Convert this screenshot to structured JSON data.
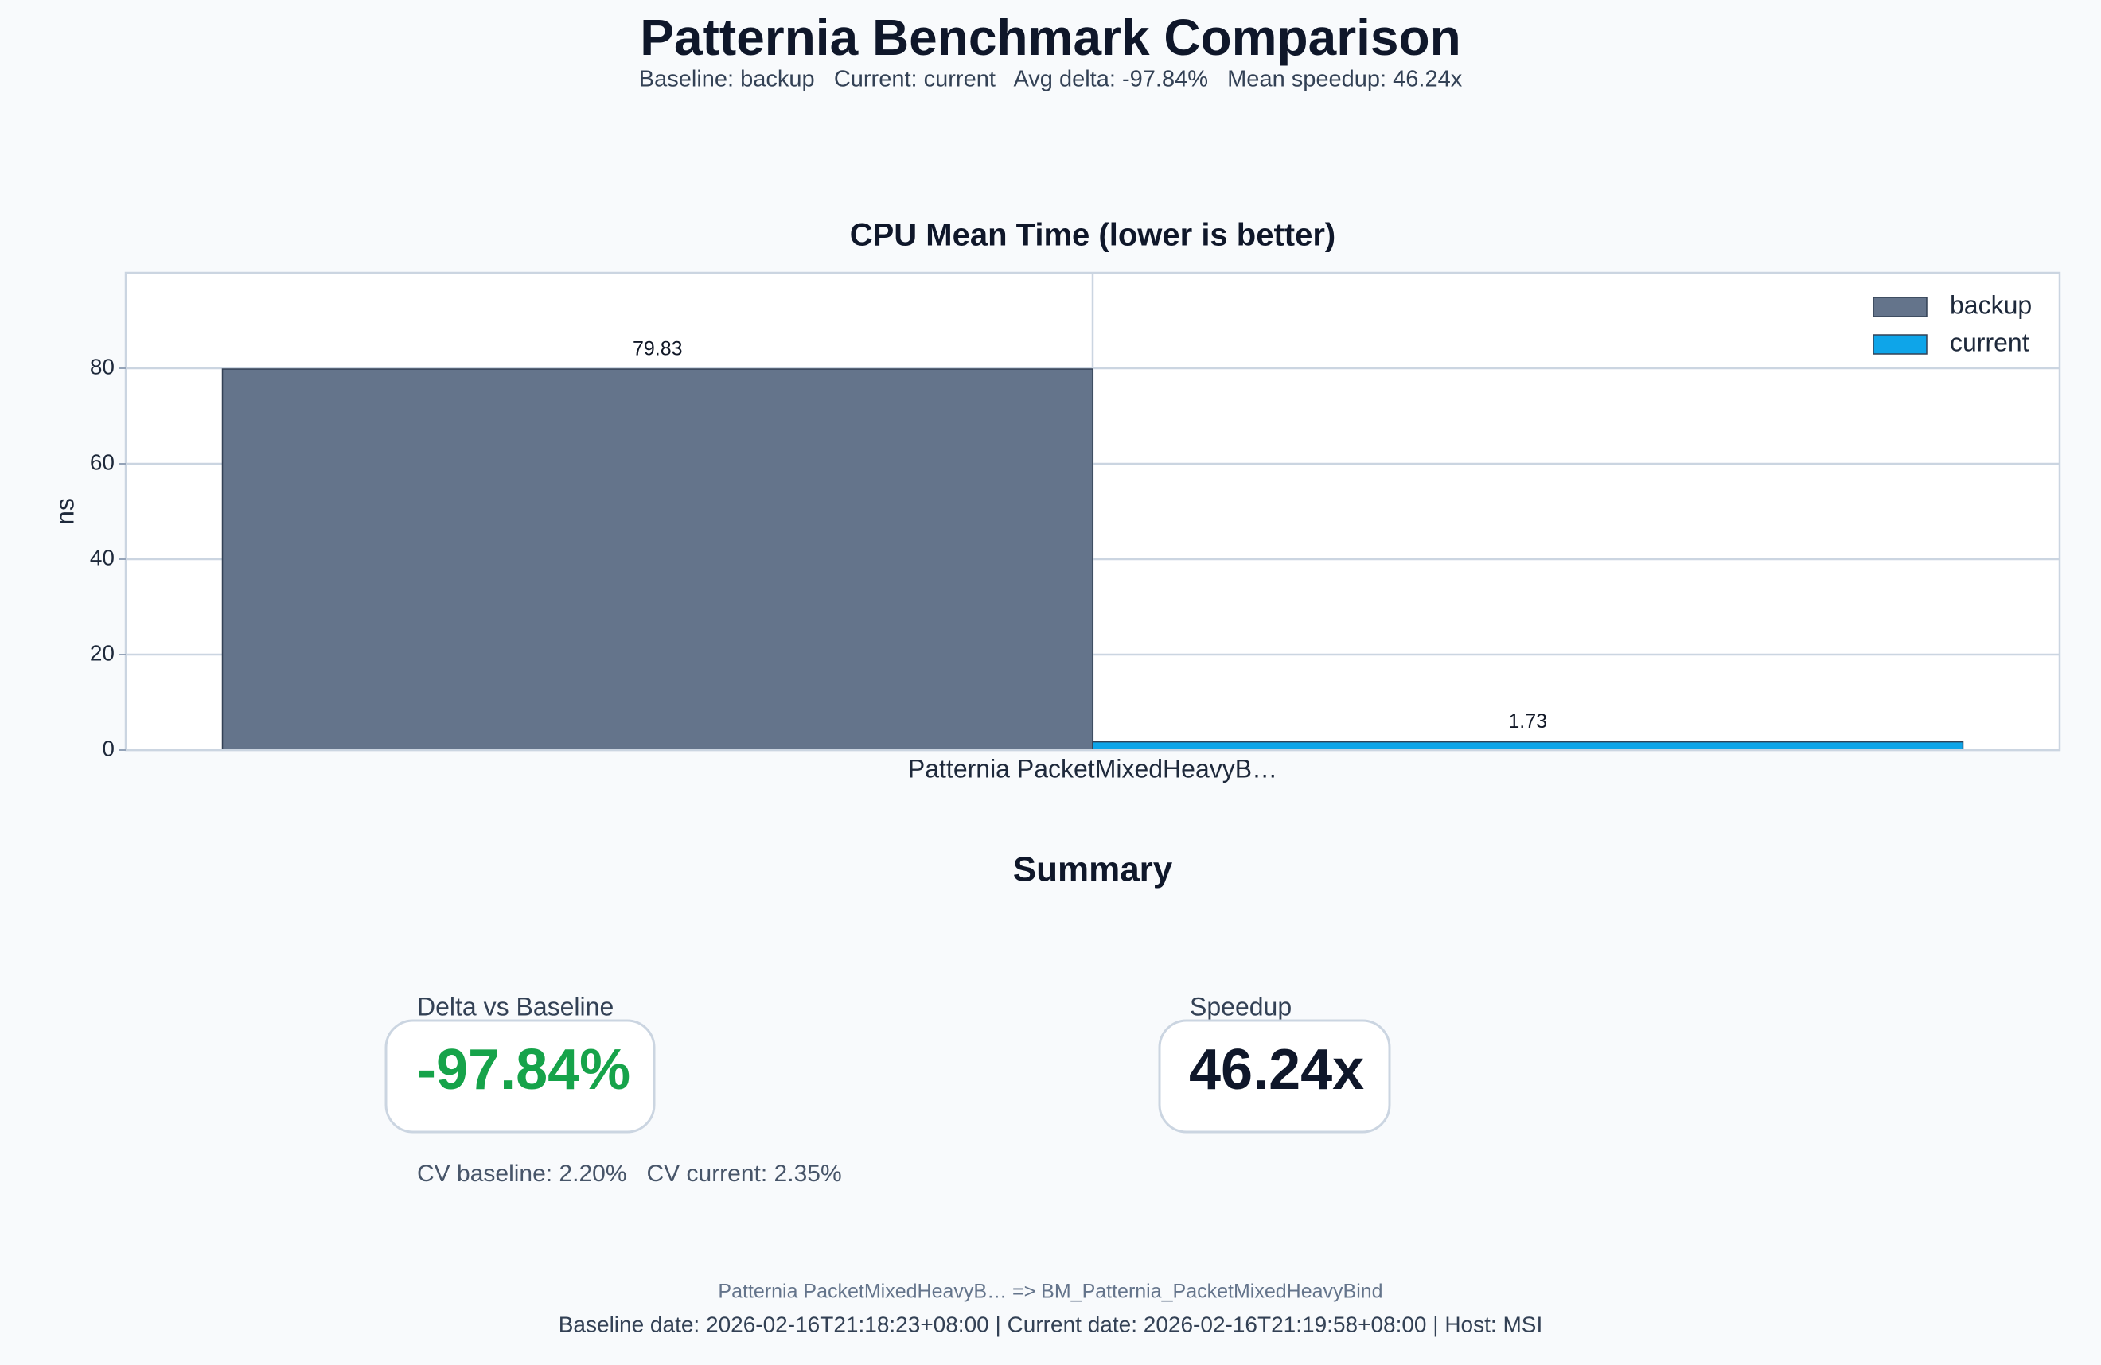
{
  "header": {
    "title": "Patternia Benchmark Comparison",
    "subtitle": "Baseline: backup   Current: current   Avg delta: -97.84%   Mean speedup: 46.24x"
  },
  "chart_data": {
    "type": "bar",
    "title": "CPU Mean Time (lower is better)",
    "y_label": "ns",
    "categories": [
      "Patternia PacketMixedHeavyB…"
    ],
    "series": [
      {
        "name": "backup",
        "color": "#64748b",
        "values": [
          79.83
        ]
      },
      {
        "name": "current",
        "color": "#0ea5e9",
        "values": [
          1.73
        ]
      }
    ],
    "ylim": [
      0,
      100
    ],
    "yticks": [
      0,
      20,
      40,
      60,
      80
    ],
    "grid": true,
    "legend": "upper right"
  },
  "summary": {
    "title": "Summary",
    "cards": [
      {
        "label": "Delta vs Baseline",
        "value": "-97.84%",
        "note": "CV baseline: 2.20%   CV current: 2.35%"
      },
      {
        "label": "Speedup",
        "value": "46.24x"
      }
    ]
  },
  "footer": {
    "mapping": "Patternia PacketMixedHeavyB… => BM_Patternia_PacketMixedHeavyBind",
    "dates": "Baseline date: 2026-02-16T21:18:23+08:00 | Current date: 2026-02-16T21:19:58+08:00 | Host: MSI"
  }
}
